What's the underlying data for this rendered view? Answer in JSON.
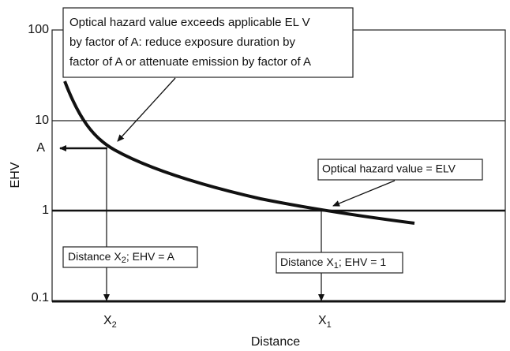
{
  "y_axis": {
    "label": "EHV",
    "ticks": [
      "100",
      "10",
      "1",
      "0.1"
    ]
  },
  "x_axis": {
    "label": "Distance",
    "points": [
      {
        "symbol": "X",
        "subscript": "2"
      },
      {
        "symbol": "X",
        "subscript": "1"
      }
    ]
  },
  "level_label": "A",
  "callouts": {
    "exceed": [
      "Optical hazard value exceeds applicable EL V",
      "by factor of A: reduce exposure duration by",
      "factor of A or attenuate emission by factor of A"
    ],
    "equal": "Optical hazard value = ELV",
    "distance_a": {
      "prefix": "Distance X",
      "subscript": "2",
      "suffix": "; EHV = A"
    },
    "distance_1": {
      "prefix": "Distance X",
      "subscript": "1",
      "suffix": "; EHV = 1"
    }
  }
}
